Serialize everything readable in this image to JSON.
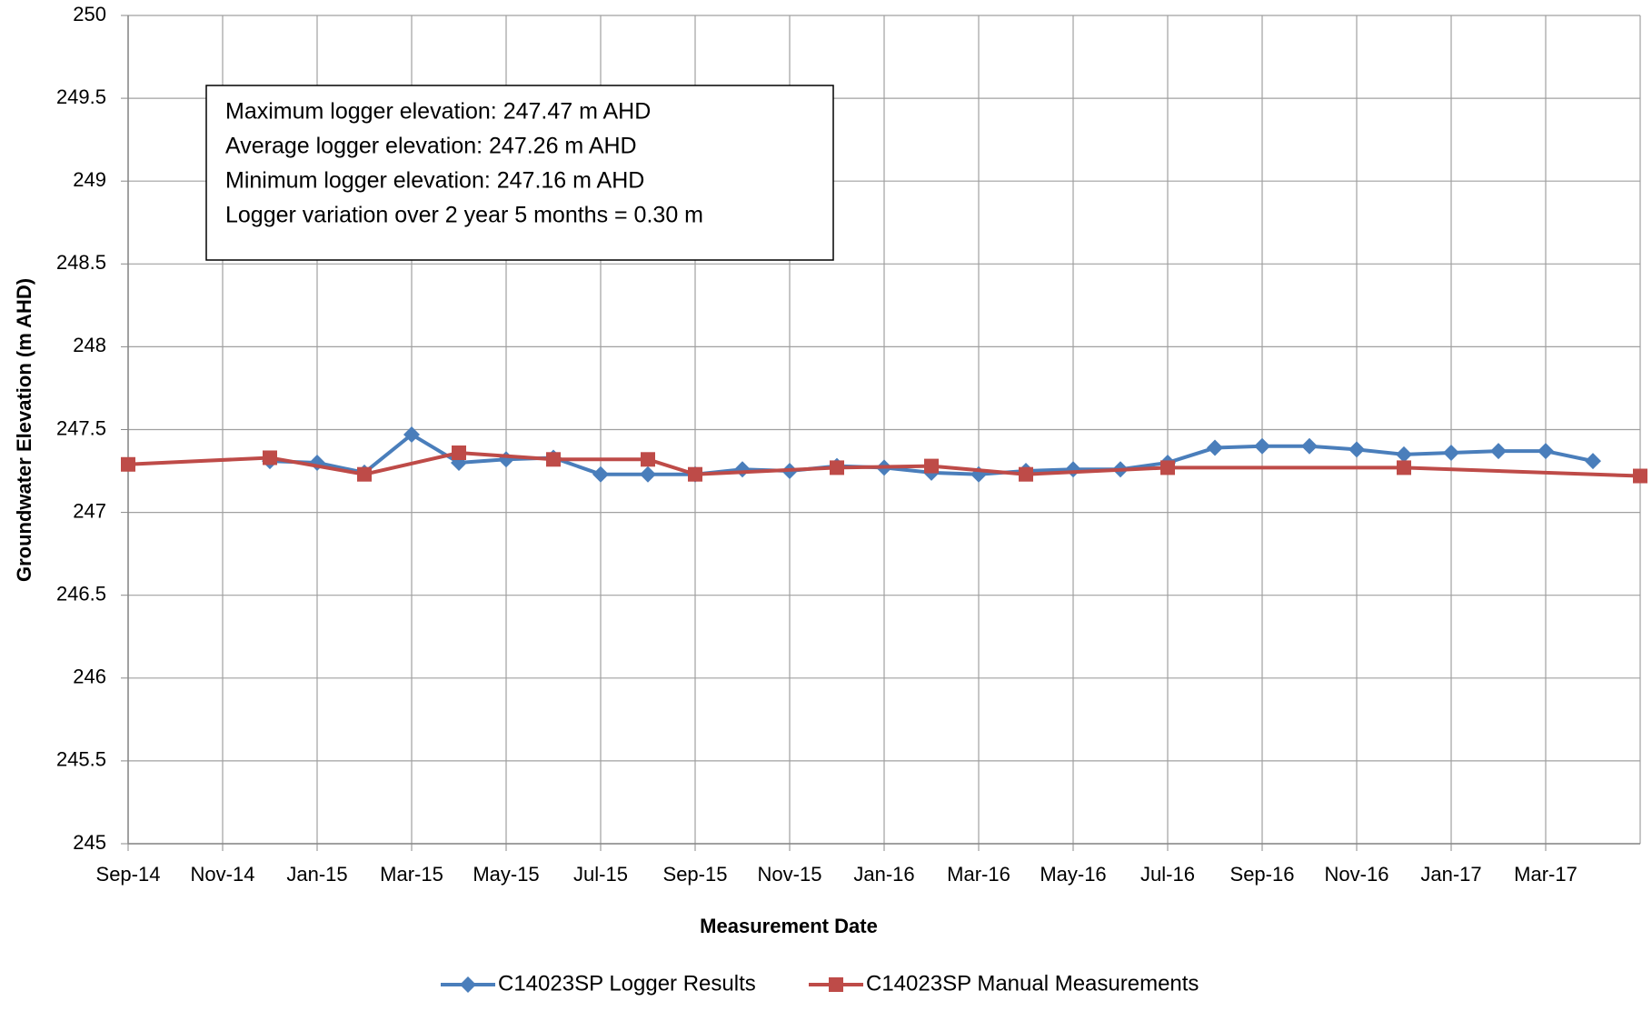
{
  "chart_data": {
    "type": "line",
    "y_label": "Groundwater Elevation (m AHD)",
    "x_label": "Measurement Date",
    "annotations": [
      "Maximum logger elevation: 247.47 m AHD",
      "Average logger elevation: 247.26 m AHD",
      "Minimum logger elevation: 247.16 m AHD",
      "Logger variation over 2 year 5 months = 0.30 m"
    ],
    "xlim": [
      "2014-09",
      "2017-05"
    ],
    "xticks": [
      {
        "value": "2014-09",
        "label": "Sep-14"
      },
      {
        "value": "2014-11",
        "label": "Nov-14"
      },
      {
        "value": "2015-01",
        "label": "Jan-15"
      },
      {
        "value": "2015-03",
        "label": "Mar-15"
      },
      {
        "value": "2015-05",
        "label": "May-15"
      },
      {
        "value": "2015-07",
        "label": "Jul-15"
      },
      {
        "value": "2015-09",
        "label": "Sep-15"
      },
      {
        "value": "2015-11",
        "label": "Nov-15"
      },
      {
        "value": "2016-01",
        "label": "Jan-16"
      },
      {
        "value": "2016-03",
        "label": "Mar-16"
      },
      {
        "value": "2016-05",
        "label": "May-16"
      },
      {
        "value": "2016-07",
        "label": "Jul-16"
      },
      {
        "value": "2016-09",
        "label": "Sep-16"
      },
      {
        "value": "2016-11",
        "label": "Nov-16"
      },
      {
        "value": "2017-01",
        "label": "Jan-17"
      },
      {
        "value": "2017-03",
        "label": "Mar-17"
      }
    ],
    "ylim": [
      245,
      250
    ],
    "yticks": [
      245,
      245.5,
      246,
      246.5,
      247,
      247.5,
      248,
      248.5,
      249,
      249.5,
      250
    ],
    "grid": true,
    "legend": "bottom",
    "series": [
      {
        "name": "C14023SP Logger Results",
        "color": "#4a7ebb",
        "marker": "diamond",
        "x": [
          "2014-12",
          "2015-01",
          "2015-02",
          "2015-03",
          "2015-04",
          "2015-05",
          "2015-06",
          "2015-07",
          "2015-08",
          "2015-09",
          "2015-10",
          "2015-11",
          "2015-12",
          "2016-01",
          "2016-02",
          "2016-03",
          "2016-04",
          "2016-05",
          "2016-06",
          "2016-07",
          "2016-08",
          "2016-09",
          "2016-10",
          "2016-11",
          "2016-12",
          "2017-01",
          "2017-02",
          "2017-03",
          "2017-04"
        ],
        "values": [
          247.31,
          247.3,
          247.24,
          247.47,
          247.3,
          247.32,
          247.33,
          247.23,
          247.23,
          247.23,
          247.26,
          247.25,
          247.28,
          247.27,
          247.24,
          247.23,
          247.25,
          247.26,
          247.26,
          247.3,
          247.39,
          247.4,
          247.4,
          247.38,
          247.35,
          247.36,
          247.37,
          247.37,
          247.31
        ]
      },
      {
        "name": "C14023SP Manual Measurements",
        "color": "#be4b48",
        "marker": "square",
        "x": [
          "2014-09",
          "2014-12",
          "2015-02",
          "2015-04",
          "2015-06",
          "2015-08",
          "2015-09",
          "2015-12",
          "2016-02",
          "2016-04",
          "2016-07",
          "2016-12",
          "2017-05"
        ],
        "values": [
          247.29,
          247.33,
          247.23,
          247.36,
          247.32,
          247.32,
          247.23,
          247.27,
          247.28,
          247.23,
          247.27,
          247.27,
          247.22
        ]
      }
    ]
  }
}
